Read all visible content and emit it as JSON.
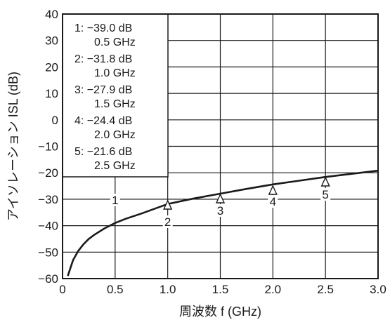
{
  "chart_data": {
    "type": "line",
    "xlabel": "周波数 f (GHz)",
    "ylabel": "アイソレーション ISL (dB)",
    "xlim": [
      0,
      3.0
    ],
    "ylim": [
      -60,
      40
    ],
    "x_ticks": [
      "0",
      "0.5",
      "1.0",
      "1.5",
      "2.0",
      "2.5",
      "3.0"
    ],
    "y_ticks": [
      "40",
      "30",
      "20",
      "10",
      "0",
      "−10",
      "−20",
      "−30",
      "−40",
      "−50",
      "−60"
    ],
    "grid": true,
    "series": [
      {
        "x": [
          0.05,
          0.1,
          0.15,
          0.2,
          0.25,
          0.3,
          0.4,
          0.5,
          0.6,
          0.75,
          1.0,
          1.25,
          1.5,
          1.75,
          2.0,
          2.25,
          2.5,
          2.75,
          3.0
        ],
        "y": [
          -59.0,
          -53.0,
          -49.5,
          -47.0,
          -45.0,
          -43.5,
          -41.0,
          -39.0,
          -37.4,
          -35.4,
          -31.8,
          -29.7,
          -27.9,
          -26.1,
          -24.4,
          -23.0,
          -21.6,
          -20.4,
          -19.2
        ]
      }
    ],
    "markers": [
      {
        "label": "1",
        "x": 0.5,
        "y": -39.0,
        "direction": "down"
      },
      {
        "label": "2",
        "x": 1.0,
        "y": -31.8,
        "direction": "up"
      },
      {
        "label": "3",
        "x": 1.5,
        "y": -27.9,
        "direction": "up"
      },
      {
        "label": "4",
        "x": 2.0,
        "y": -24.4,
        "direction": "up"
      },
      {
        "label": "5",
        "x": 2.5,
        "y": -21.6,
        "direction": "up"
      }
    ],
    "legend": [
      {
        "line1": "1: −39.0 dB",
        "line2": "0.5 GHz"
      },
      {
        "line1": "2: −31.8 dB",
        "line2": "1.0 GHz"
      },
      {
        "line1": "3: −27.9 dB",
        "line2": "1.5 GHz"
      },
      {
        "line1": "4: −24.4 dB",
        "line2": "2.0 GHz"
      },
      {
        "line1": "5: −21.6 dB",
        "line2": "2.5 GHz"
      }
    ],
    "legend_position": "top-left"
  }
}
